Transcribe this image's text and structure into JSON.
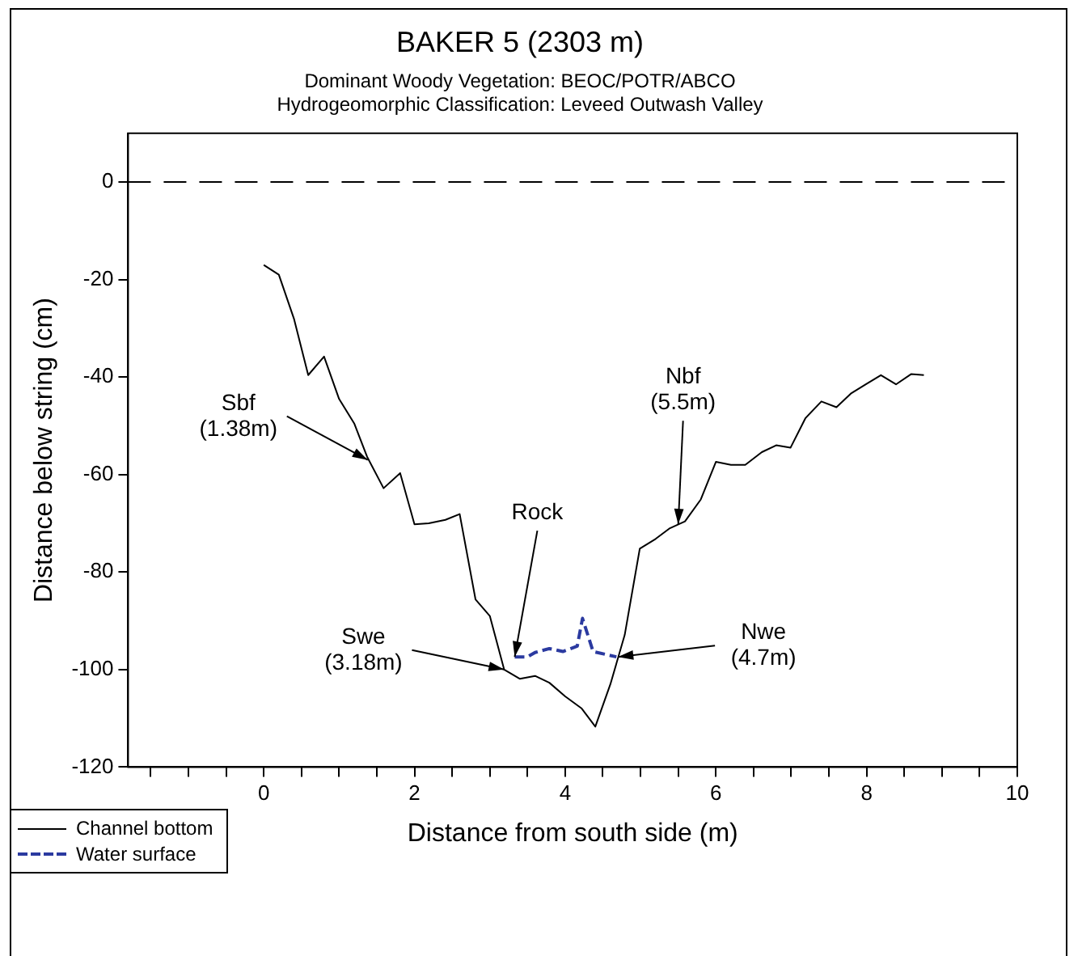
{
  "chart_data": {
    "type": "line",
    "title": "BAKER 5 (2303 m)",
    "subtitle": "Dominant Woody Vegetation: BEOC/POTR/ABCO\nHydrogeomorphic Classification: Leveed Outwash Valley",
    "xlabel": "Distance from south side (m)",
    "ylabel": "Distance below string (cm)",
    "series": [
      {
        "name": "Channel bottom",
        "color": "#000000",
        "line_style": "solid",
        "x": [
          0,
          0.2,
          0.4,
          0.59,
          0.8,
          1.0,
          1.2,
          1.37,
          1.59,
          1.81,
          2.0,
          2.19,
          2.41,
          2.6,
          2.81,
          3.0,
          3.19,
          3.4,
          3.6,
          3.79,
          4.0,
          4.22,
          4.4,
          4.6,
          4.79,
          4.99,
          5.2,
          5.39,
          5.59,
          5.8,
          6.0,
          6.2,
          6.39,
          6.61,
          6.8,
          6.99,
          7.19,
          7.4,
          7.6,
          7.79,
          7.99,
          8.19,
          8.39,
          8.59,
          8.76
        ],
        "values": [
          -17,
          -19,
          -28,
          -39.6,
          -35.8,
          -44.5,
          -49.5,
          -56.3,
          -62.8,
          -59.7,
          -70.2,
          -70,
          -69.3,
          -68.1,
          -85.6,
          -89,
          -100,
          -101.9,
          -101.3,
          -102.7,
          -105.5,
          -108,
          -111.7,
          -103,
          -92.9,
          -75.2,
          -73.2,
          -71,
          -69.6,
          -65.1,
          -57.4,
          -58,
          -58,
          -55.4,
          -54,
          -54.5,
          -48.4,
          -45,
          -46.2,
          -43.4,
          -41.5,
          -39.6,
          -41.5,
          -39.4,
          -39.6
        ]
      },
      {
        "name": "Water surface",
        "color": "#2b3aa0",
        "line_style": "dashed",
        "x": [
          3.33,
          3.5,
          3.6,
          3.79,
          3.97,
          4.16,
          4.23,
          4.37,
          4.68
        ],
        "values": [
          -97.4,
          -97.4,
          -96.5,
          -95.7,
          -96.3,
          -95.2,
          -89.5,
          -96.3,
          -97.4
        ]
      }
    ],
    "xlim": [
      -1.8,
      10
    ],
    "xticks": [
      {
        "value": -1.5,
        "label": null
      },
      {
        "value": -1,
        "label": null
      },
      {
        "value": -0.5,
        "label": null
      },
      0,
      {
        "value": 0.5,
        "label": null
      },
      {
        "value": 1,
        "label": null
      },
      {
        "value": 1.5,
        "label": null
      },
      2,
      {
        "value": 2.5,
        "label": null
      },
      {
        "value": 3,
        "label": null
      },
      {
        "value": 3.5,
        "label": null
      },
      4,
      {
        "value": 4.5,
        "label": null
      },
      {
        "value": 5,
        "label": null
      },
      {
        "value": 5.5,
        "label": null
      },
      6,
      {
        "value": 6.5,
        "label": null
      },
      {
        "value": 7,
        "label": null
      },
      {
        "value": 7.5,
        "label": null
      },
      8,
      {
        "value": 8.5,
        "label": null
      },
      {
        "value": 9,
        "label": null
      },
      {
        "value": 9.5,
        "label": null
      },
      10
    ],
    "ylim": [
      -120,
      10
    ],
    "yticks": [
      -120,
      -100,
      -80,
      -60,
      -40,
      -20,
      0
    ],
    "ref_lines": [
      {
        "axis": "y",
        "value": 0,
        "line_style": "dashed",
        "color": "#000000"
      }
    ],
    "annotations": [
      {
        "text": "Sbf\n(1.38m)",
        "x": 1.38,
        "y": -57
      },
      {
        "text": "Rock",
        "x": 3.33,
        "y": -97.4
      },
      {
        "text": "Swe\n(3.18m)",
        "x": 3.19,
        "y": -100
      },
      {
        "text": "Nbf\n(5.5m)",
        "x": 5.5,
        "y": -70.2
      },
      {
        "text": "Nwe\n(4.7m)",
        "x": 4.7,
        "y": -97.4
      }
    ],
    "grid": false,
    "legend": "bottom left",
    "marker": "none"
  }
}
